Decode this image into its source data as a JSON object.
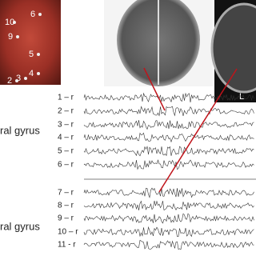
{
  "photo": {
    "electrodes": [
      "10",
      "9",
      "6",
      "5",
      "4",
      "3",
      "2"
    ]
  },
  "mri": {
    "side_label": "L"
  },
  "regions": [
    "ral gyrus",
    "ral gyrus"
  ],
  "channels": [
    "1 – r",
    "2 – r",
    "3 – r",
    "4 – r",
    "5 – r",
    "6 – r",
    "7 – r",
    "8 – r",
    "9 – r",
    "10 – r",
    "11 - r"
  ]
}
